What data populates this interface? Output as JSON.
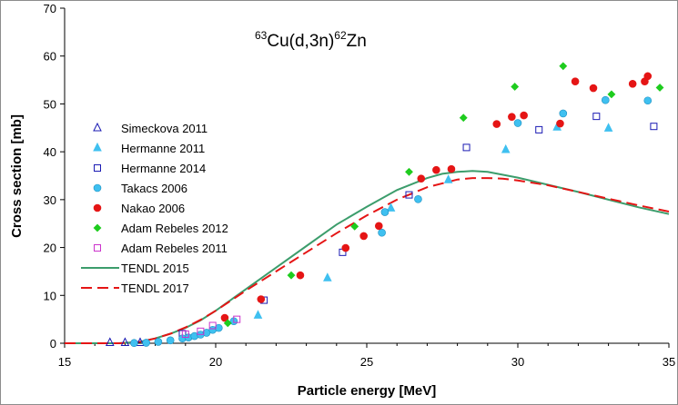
{
  "chart_data": {
    "type": "scatter",
    "title": {
      "sup1": "63",
      "main1": "Cu(d,3n)",
      "sup2": "62",
      "main2": "Zn"
    },
    "xlabel": "Particle energy [MeV]",
    "ylabel": "Cross section [mb]",
    "xlim": [
      15,
      35
    ],
    "ylim": [
      0,
      70
    ],
    "xticks": [
      15,
      20,
      25,
      30,
      35
    ],
    "yticks": [
      0,
      10,
      20,
      30,
      40,
      50,
      60,
      70
    ],
    "legend_position": "left",
    "series": [
      {
        "name": "Simeckova 2011",
        "marker": "triangle-open",
        "color": "#1a1ab3",
        "points": [
          [
            16.5,
            0.1
          ],
          [
            17.0,
            0.1
          ],
          [
            17.5,
            0.1
          ]
        ]
      },
      {
        "name": "Hermanne 2011",
        "marker": "triangle-filled",
        "color": "#3fc0f0",
        "points": [
          [
            21.4,
            5.8
          ],
          [
            23.7,
            13.6
          ],
          [
            25.8,
            28.2
          ],
          [
            27.7,
            34.1
          ],
          [
            29.6,
            40.4
          ],
          [
            31.3,
            45.1
          ],
          [
            33.0,
            44.9
          ]
        ]
      },
      {
        "name": "Hermanne 2014",
        "marker": "square-open",
        "color": "#1a1ab3",
        "points": [
          [
            18.9,
            2.0
          ],
          [
            21.6,
            9.0
          ],
          [
            24.2,
            19.0
          ],
          [
            26.4,
            31.0
          ],
          [
            28.3,
            40.9
          ],
          [
            30.7,
            44.6
          ],
          [
            32.6,
            47.4
          ],
          [
            34.5,
            45.3
          ]
        ]
      },
      {
        "name": "Takacs 2006",
        "marker": "circle-filled",
        "color": "#3fc0f0",
        "points": [
          [
            17.3,
            0.05
          ],
          [
            17.7,
            0.1
          ],
          [
            18.1,
            0.3
          ],
          [
            18.5,
            0.6
          ],
          [
            18.9,
            1.0
          ],
          [
            19.1,
            1.2
          ],
          [
            19.3,
            1.5
          ],
          [
            19.5,
            1.8
          ],
          [
            19.7,
            2.2
          ],
          [
            19.9,
            2.8
          ],
          [
            20.1,
            3.2
          ],
          [
            20.6,
            4.6
          ],
          [
            25.5,
            23.1
          ],
          [
            25.6,
            27.4
          ],
          [
            26.7,
            30.1
          ],
          [
            30.0,
            46.0
          ],
          [
            31.5,
            48.0
          ],
          [
            32.9,
            50.8
          ],
          [
            34.3,
            50.7
          ]
        ]
      },
      {
        "name": "Nakao 2006",
        "marker": "circle-filled",
        "color": "#e51515",
        "points": [
          [
            20.3,
            5.3
          ],
          [
            21.5,
            9.2
          ],
          [
            22.8,
            14.2
          ],
          [
            24.3,
            19.9
          ],
          [
            24.9,
            22.4
          ],
          [
            25.4,
            24.5
          ],
          [
            26.8,
            34.4
          ],
          [
            27.3,
            36.2
          ],
          [
            27.8,
            36.4
          ],
          [
            29.3,
            45.8
          ],
          [
            29.8,
            47.3
          ],
          [
            30.2,
            47.6
          ],
          [
            31.4,
            45.9
          ],
          [
            31.9,
            54.7
          ],
          [
            32.5,
            53.3
          ],
          [
            33.8,
            54.2
          ],
          [
            34.2,
            54.7
          ],
          [
            34.3,
            55.8
          ]
        ]
      },
      {
        "name": "Adam Rebeles 2012",
        "marker": "diamond-filled",
        "color": "#1ecc1e",
        "points": [
          [
            20.4,
            4.2
          ],
          [
            22.5,
            14.2
          ],
          [
            24.6,
            24.4
          ],
          [
            26.4,
            35.8
          ],
          [
            28.2,
            47.1
          ],
          [
            29.9,
            53.6
          ],
          [
            31.5,
            57.9
          ],
          [
            33.1,
            52.0
          ],
          [
            34.7,
            53.4
          ]
        ]
      },
      {
        "name": "Adam Rebeles 2011",
        "marker": "square-open",
        "color": "#cc33cc",
        "points": [
          [
            19.0,
            1.9
          ],
          [
            19.5,
            2.5
          ],
          [
            19.9,
            3.7
          ],
          [
            20.7,
            5.0
          ]
        ]
      }
    ],
    "curves": [
      {
        "name": "TENDL 2015",
        "style": "solid",
        "color": "#3c9d6c",
        "points": [
          [
            15.0,
            0
          ],
          [
            16.0,
            0
          ],
          [
            16.8,
            0
          ],
          [
            17.5,
            0.3
          ],
          [
            18.0,
            1.0
          ],
          [
            18.5,
            2.0
          ],
          [
            19.0,
            3.2
          ],
          [
            19.5,
            4.8
          ],
          [
            20.0,
            6.8
          ],
          [
            21.0,
            11.3
          ],
          [
            22.0,
            15.8
          ],
          [
            23.0,
            20.3
          ],
          [
            24.0,
            24.8
          ],
          [
            25.0,
            28.5
          ],
          [
            26.0,
            32.0
          ],
          [
            27.0,
            34.5
          ],
          [
            27.5,
            35.4
          ],
          [
            28.0,
            35.8
          ],
          [
            28.5,
            36.0
          ],
          [
            29.0,
            35.8
          ],
          [
            30.0,
            34.6
          ],
          [
            31.0,
            33.1
          ],
          [
            32.0,
            31.6
          ],
          [
            33.0,
            30.0
          ],
          [
            34.0,
            28.4
          ],
          [
            35.0,
            27.0
          ]
        ]
      },
      {
        "name": "TENDL 2017",
        "style": "dashed",
        "color": "#e51515",
        "points": [
          [
            15.0,
            0
          ],
          [
            16.0,
            0
          ],
          [
            16.8,
            0
          ],
          [
            17.5,
            0.3
          ],
          [
            18.0,
            1.0
          ],
          [
            18.5,
            2.0
          ],
          [
            19.0,
            3.3
          ],
          [
            19.5,
            4.9
          ],
          [
            20.0,
            6.8
          ],
          [
            21.0,
            11.0
          ],
          [
            22.0,
            15.0
          ],
          [
            23.0,
            19.0
          ],
          [
            24.0,
            23.0
          ],
          [
            25.0,
            26.7
          ],
          [
            26.0,
            30.0
          ],
          [
            27.0,
            32.6
          ],
          [
            28.0,
            34.2
          ],
          [
            28.5,
            34.5
          ],
          [
            29.0,
            34.5
          ],
          [
            29.5,
            34.4
          ],
          [
            30.0,
            34.0
          ],
          [
            31.0,
            33.0
          ],
          [
            32.0,
            31.6
          ],
          [
            33.0,
            30.2
          ],
          [
            34.0,
            28.8
          ],
          [
            35.0,
            27.5
          ]
        ]
      }
    ]
  }
}
